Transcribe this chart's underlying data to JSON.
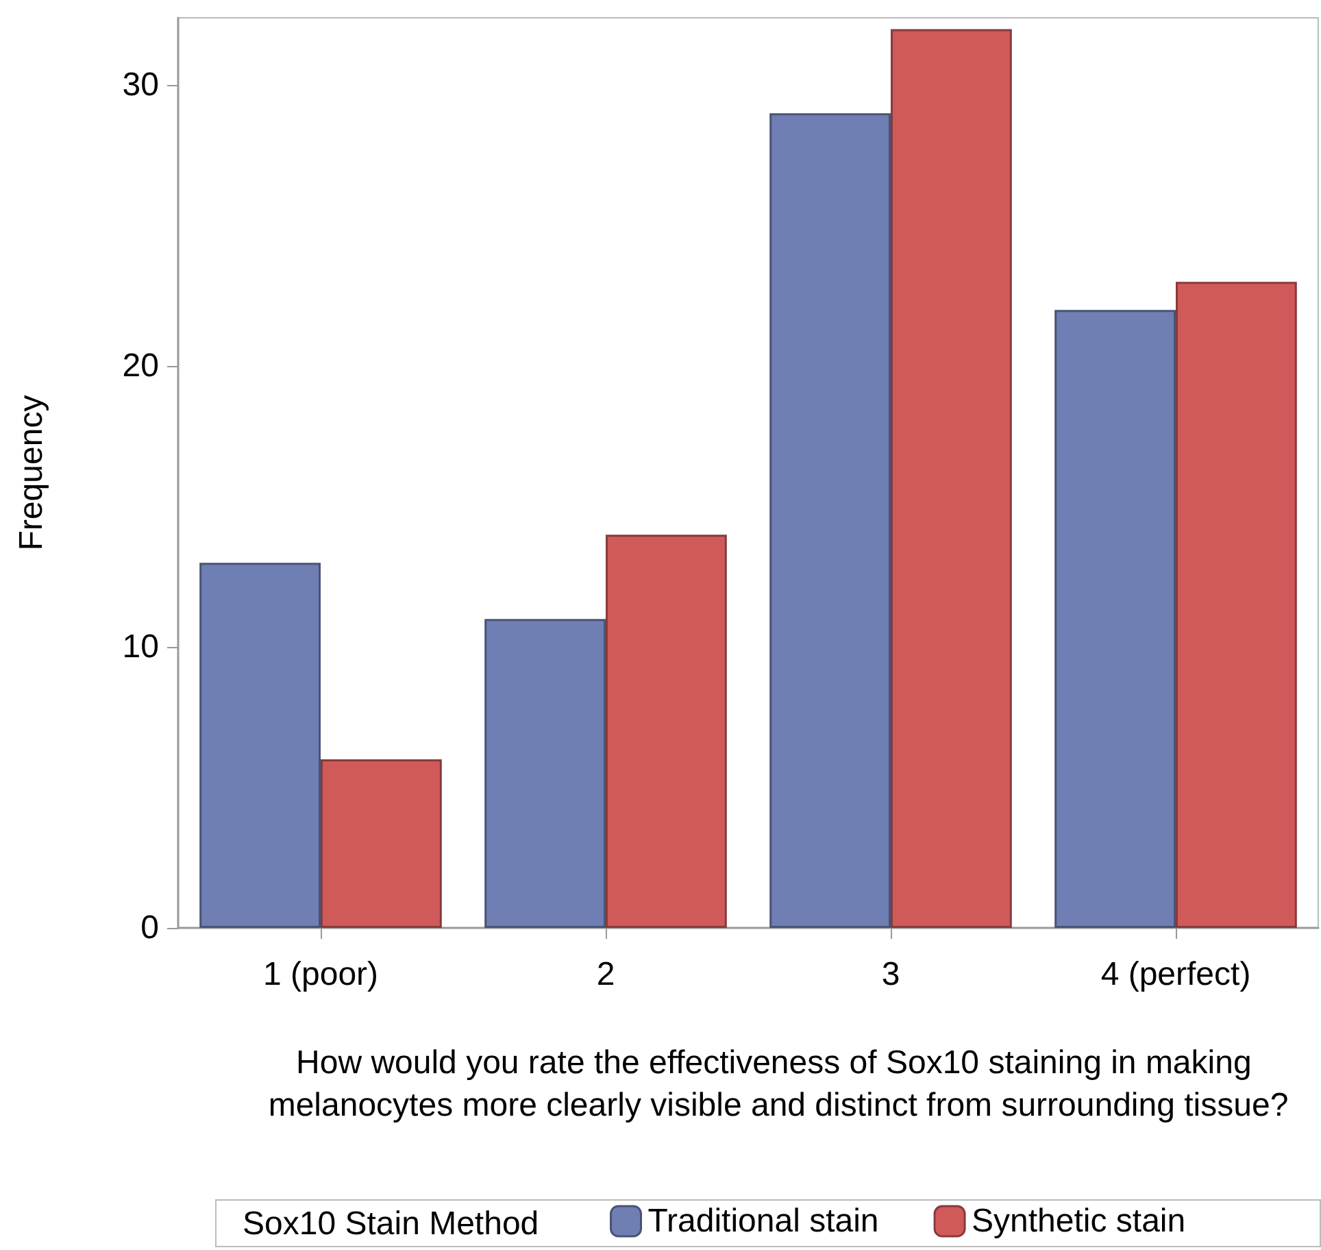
{
  "chart_data": {
    "type": "bar",
    "xlabel": "How would you rate the effectiveness of Sox10 staining in making melanocytes more clearly visible and distinct from surrounding tissue?",
    "ylabel": "Frequency",
    "legend_title": "Sox10 Stain Method",
    "categories": [
      "1 (poor)",
      "2",
      "3",
      "4 (perfect)"
    ],
    "series": [
      {
        "name": "Traditional stain",
        "color": "#6f7fb4",
        "values": [
          13,
          11,
          29,
          22
        ]
      },
      {
        "name": "Synthetic stain",
        "color": "#d05a5a",
        "values": [
          6,
          14,
          32,
          23
        ]
      }
    ],
    "ylim": [
      0,
      32.4
    ],
    "yticks": [
      0,
      10,
      20,
      30
    ],
    "grid": false,
    "legend": "bottom"
  }
}
